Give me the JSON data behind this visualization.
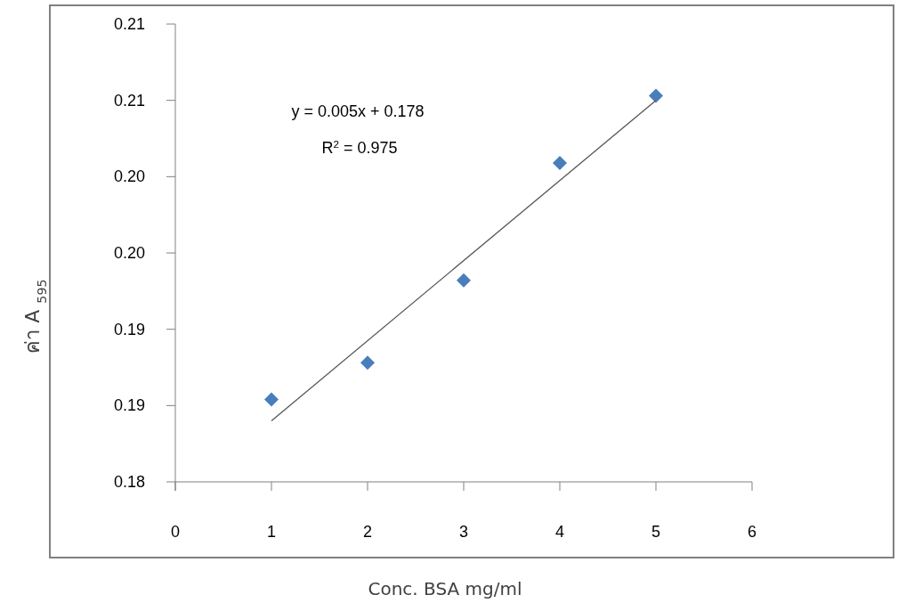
{
  "chart_data": {
    "type": "scatter",
    "xlabel": "Conc. BSA mg/ml",
    "ylabel": "ค่า A $_{595}$",
    "annotations": [
      "y = 0.005x + 0.178",
      "R$^{2}$ = 0.975"
    ],
    "xlim": [
      0,
      6
    ],
    "xticks": [
      0,
      1,
      2,
      3,
      4,
      5,
      6
    ],
    "ylim": [
      0.18,
      0.21
    ],
    "yticks": [
      {
        "value": 0.18,
        "label": "0.18"
      },
      {
        "value": 0.185,
        "label": "0.19"
      },
      {
        "value": 0.19,
        "label": "0.19"
      },
      {
        "value": 0.195,
        "label": "0.20"
      },
      {
        "value": 0.2,
        "label": "0.20"
      },
      {
        "value": 0.205,
        "label": "0.21"
      },
      {
        "value": 0.21,
        "label": "0.21"
      }
    ],
    "grid": false,
    "series": [
      {
        "type": "scatter",
        "color": "#4a7ebb",
        "marker": "diamond",
        "x": [
          1,
          2,
          3,
          4,
          5
        ],
        "values": [
          0.1854,
          0.1878,
          0.1932,
          0.2009,
          0.2053
        ]
      },
      {
        "type": "line",
        "color": "#555555",
        "marker": "none",
        "line_style": "solid",
        "x": [
          1,
          5
        ],
        "values": [
          0.184,
          0.205
        ]
      }
    ]
  }
}
